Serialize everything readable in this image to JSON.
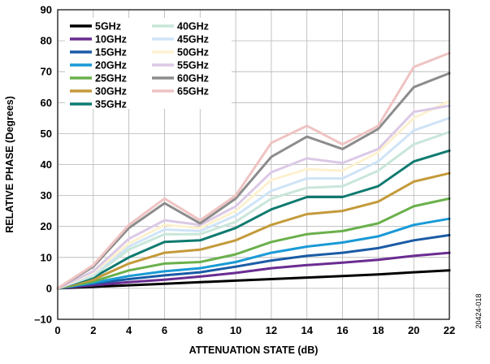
{
  "chart_data": {
    "type": "line",
    "xlabel": "ATTENUATION STATE (dB)",
    "ylabel": "RELATIVE PHASE (Degrees)",
    "xlim": [
      0,
      22
    ],
    "ylim": [
      -10,
      90
    ],
    "xticks": [
      0,
      2,
      4,
      6,
      8,
      10,
      12,
      14,
      16,
      18,
      20,
      22
    ],
    "yticks": [
      -10,
      0,
      10,
      20,
      30,
      40,
      50,
      60,
      70,
      80,
      90
    ],
    "ytick_labels": [
      "–10",
      "0",
      "10",
      "20",
      "30",
      "40",
      "50",
      "60",
      "70",
      "80",
      "90"
    ],
    "grid": true,
    "legend_position": "top-left",
    "figure_id": "20424-018",
    "x": [
      0,
      2,
      4,
      6,
      8,
      10,
      12,
      14,
      16,
      18,
      20,
      22
    ],
    "series": [
      {
        "name": "5GHz",
        "color": "#000000",
        "values": [
          0,
          0.5,
          1.0,
          1.5,
          2.0,
          2.5,
          3.0,
          3.5,
          4.0,
          4.5,
          5.2,
          5.8
        ]
      },
      {
        "name": "10GHz",
        "color": "#6a2c91",
        "values": [
          0,
          1.0,
          2.0,
          2.8,
          3.8,
          5.0,
          6.5,
          7.5,
          8.3,
          9.2,
          10.5,
          11.5
        ]
      },
      {
        "name": "15GHz",
        "color": "#1a5ba6",
        "values": [
          0,
          1.5,
          3.0,
          4.2,
          5.2,
          7.0,
          9.0,
          10.5,
          11.5,
          13.0,
          15.5,
          17.2
        ]
      },
      {
        "name": "20GHz",
        "color": "#1a9ad6",
        "values": [
          0,
          1.8,
          4.0,
          5.5,
          6.5,
          8.5,
          11.5,
          13.5,
          14.8,
          16.8,
          20.5,
          22.5
        ]
      },
      {
        "name": "25GHz",
        "color": "#6ab04c",
        "values": [
          0,
          2.2,
          5.8,
          8.0,
          8.5,
          11.0,
          15.0,
          17.5,
          18.5,
          21.0,
          26.5,
          29.0
        ]
      },
      {
        "name": "30GHz",
        "color": "#c49a3a",
        "values": [
          0,
          2.8,
          8.0,
          11.5,
          12.5,
          15.5,
          20.5,
          24.0,
          25.0,
          28.0,
          34.5,
          37.2
        ]
      },
      {
        "name": "35GHz",
        "color": "#0f7a70",
        "values": [
          0,
          3.5,
          10.0,
          15.0,
          15.5,
          19.5,
          25.5,
          29.5,
          29.5,
          33.0,
          41.0,
          44.5
        ]
      },
      {
        "name": "40GHz",
        "color": "#c9e6d9",
        "values": [
          0,
          4.0,
          12.5,
          17.5,
          17.5,
          21.5,
          29.0,
          32.5,
          33.0,
          38.0,
          46.5,
          50.5
        ]
      },
      {
        "name": "45GHz",
        "color": "#cfe4f7",
        "values": [
          0,
          4.5,
          13.5,
          19.0,
          18.5,
          23.5,
          31.5,
          35.5,
          35.5,
          41.0,
          51.0,
          55.0
        ]
      },
      {
        "name": "50GHz",
        "color": "#fdf1cf",
        "values": [
          0,
          5.0,
          14.5,
          20.5,
          19.5,
          25.0,
          35.0,
          38.5,
          38.0,
          44.0,
          55.0,
          60.5
        ]
      },
      {
        "name": "55GHz",
        "color": "#dbc9e6",
        "values": [
          0,
          5.5,
          16.0,
          22.0,
          20.5,
          26.5,
          37.5,
          42.0,
          40.5,
          45.0,
          57.0,
          59.0
        ]
      },
      {
        "name": "60GHz",
        "color": "#8c8c8c",
        "values": [
          0,
          7.0,
          19.5,
          27.5,
          21.0,
          29.0,
          42.5,
          49.0,
          45.0,
          51.5,
          65.0,
          69.5
        ]
      },
      {
        "name": "65GHz",
        "color": "#efc3c3",
        "values": [
          0,
          7.5,
          20.5,
          29.0,
          22.0,
          30.0,
          47.0,
          52.5,
          46.5,
          52.5,
          71.5,
          76.0
        ]
      }
    ]
  }
}
